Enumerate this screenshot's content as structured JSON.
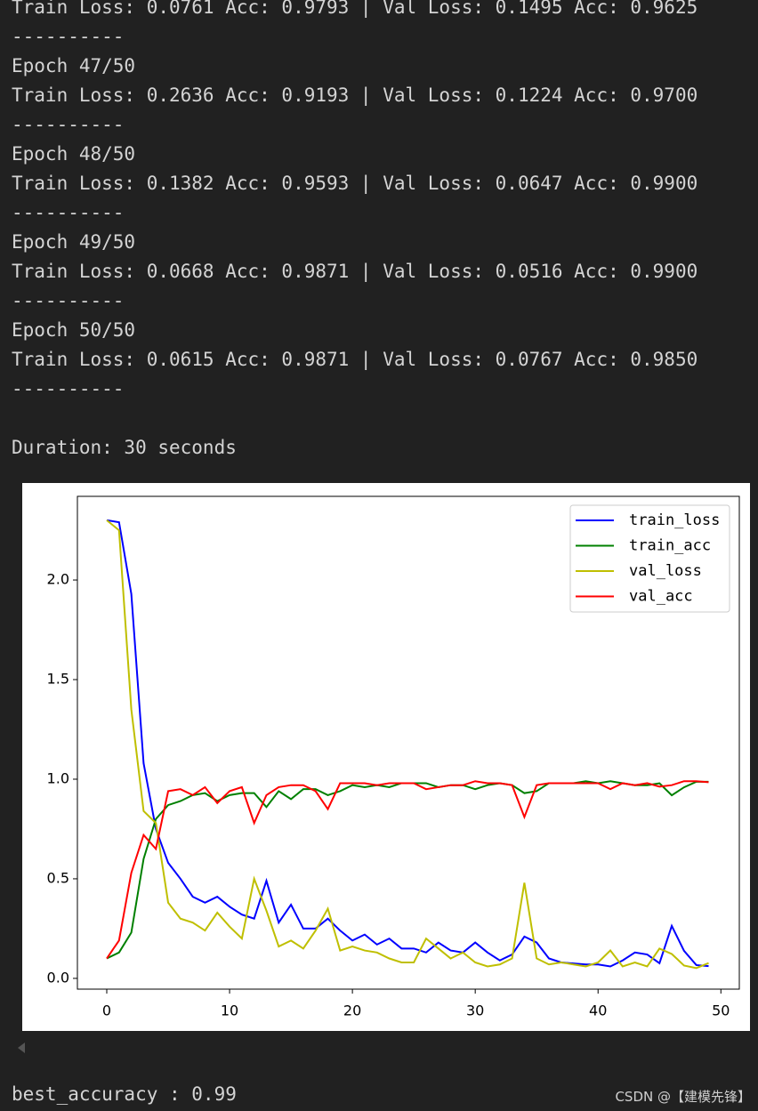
{
  "log": {
    "lines": [
      "Train Loss: 0.0761 Acc: 0.9793 | Val Loss: 0.1495 Acc: 0.9625",
      "----------",
      "Epoch 47/50",
      "Train Loss: 0.2636 Acc: 0.9193 | Val Loss: 0.1224 Acc: 0.9700",
      "----------",
      "Epoch 48/50",
      "Train Loss: 0.1382 Acc: 0.9593 | Val Loss: 0.0647 Acc: 0.9900",
      "----------",
      "Epoch 49/50",
      "Train Loss: 0.0668 Acc: 0.9871 | Val Loss: 0.0516 Acc: 0.9900",
      "----------",
      "Epoch 50/50",
      "Train Loss: 0.0615 Acc: 0.9871 | Val Loss: 0.0767 Acc: 0.9850",
      "----------"
    ],
    "duration": "Duration: 30 seconds"
  },
  "chart_data": {
    "type": "line",
    "x": [
      0,
      1,
      2,
      3,
      4,
      5,
      6,
      7,
      8,
      9,
      10,
      11,
      12,
      13,
      14,
      15,
      16,
      17,
      18,
      19,
      20,
      21,
      22,
      23,
      24,
      25,
      26,
      27,
      28,
      29,
      30,
      31,
      32,
      33,
      34,
      35,
      36,
      37,
      38,
      39,
      40,
      41,
      42,
      43,
      44,
      45,
      46,
      47,
      48,
      49
    ],
    "series": [
      {
        "name": "train_loss",
        "color": "#0000ff",
        "values": [
          2.3,
          2.29,
          1.93,
          1.08,
          0.75,
          0.58,
          0.5,
          0.41,
          0.38,
          0.41,
          0.36,
          0.32,
          0.3,
          0.49,
          0.28,
          0.37,
          0.25,
          0.25,
          0.3,
          0.24,
          0.19,
          0.22,
          0.17,
          0.2,
          0.15,
          0.15,
          0.13,
          0.18,
          0.14,
          0.13,
          0.18,
          0.13,
          0.09,
          0.12,
          0.21,
          0.18,
          0.1,
          0.08,
          0.075,
          0.07,
          0.07,
          0.06,
          0.09,
          0.13,
          0.12,
          0.0761,
          0.2636,
          0.1382,
          0.0668,
          0.0615
        ]
      },
      {
        "name": "train_acc",
        "color": "#008000",
        "values": [
          0.1,
          0.13,
          0.23,
          0.6,
          0.8,
          0.87,
          0.89,
          0.92,
          0.93,
          0.89,
          0.92,
          0.93,
          0.93,
          0.86,
          0.94,
          0.9,
          0.95,
          0.95,
          0.92,
          0.94,
          0.97,
          0.96,
          0.97,
          0.96,
          0.98,
          0.98,
          0.98,
          0.96,
          0.97,
          0.97,
          0.95,
          0.97,
          0.98,
          0.97,
          0.93,
          0.94,
          0.98,
          0.98,
          0.98,
          0.99,
          0.98,
          0.99,
          0.98,
          0.97,
          0.97,
          0.9793,
          0.9193,
          0.9593,
          0.9871,
          0.9871
        ]
      },
      {
        "name": "val_loss",
        "color": "#bfbf00",
        "values": [
          2.3,
          2.25,
          1.35,
          0.84,
          0.78,
          0.38,
          0.3,
          0.28,
          0.24,
          0.33,
          0.26,
          0.2,
          0.5,
          0.34,
          0.16,
          0.19,
          0.15,
          0.24,
          0.35,
          0.14,
          0.16,
          0.14,
          0.13,
          0.1,
          0.08,
          0.08,
          0.2,
          0.15,
          0.1,
          0.13,
          0.08,
          0.06,
          0.07,
          0.1,
          0.48,
          0.1,
          0.07,
          0.08,
          0.07,
          0.06,
          0.08,
          0.14,
          0.06,
          0.08,
          0.06,
          0.1495,
          0.1224,
          0.0647,
          0.0516,
          0.0767
        ]
      },
      {
        "name": "val_acc",
        "color": "#ff0000",
        "values": [
          0.1,
          0.19,
          0.53,
          0.72,
          0.65,
          0.94,
          0.95,
          0.92,
          0.96,
          0.88,
          0.94,
          0.96,
          0.78,
          0.92,
          0.96,
          0.97,
          0.97,
          0.94,
          0.85,
          0.98,
          0.98,
          0.98,
          0.97,
          0.98,
          0.98,
          0.98,
          0.95,
          0.96,
          0.97,
          0.97,
          0.99,
          0.98,
          0.98,
          0.97,
          0.81,
          0.97,
          0.98,
          0.98,
          0.98,
          0.98,
          0.98,
          0.95,
          0.98,
          0.97,
          0.98,
          0.9625,
          0.97,
          0.99,
          0.99,
          0.985
        ]
      }
    ],
    "xlim": [
      -2.39,
      51.5
    ],
    "ylim": [
      -0.054,
      2.42
    ],
    "xticks": [
      0,
      10,
      20,
      30,
      40,
      50
    ],
    "yticks": [
      {
        "value": 0,
        "label": "0.0"
      },
      0.5,
      {
        "value": 1,
        "label": "1.0"
      },
      1.5,
      {
        "value": 2,
        "label": "2.0"
      }
    ],
    "legend": "upper right"
  },
  "footer": {
    "output": "best_accuracy : 0.99",
    "watermark": "CSDN @【建模先锋】"
  }
}
